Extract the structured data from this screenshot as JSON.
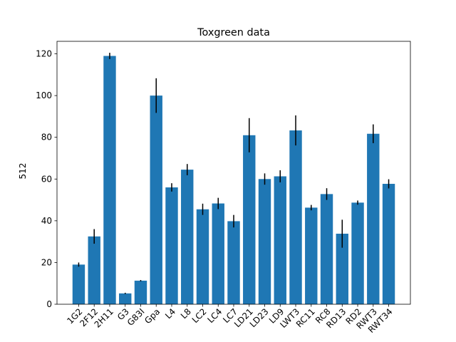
{
  "chart_data": {
    "type": "bar",
    "title": "Toxgreen data",
    "xlabel": "",
    "ylabel": "512",
    "ylim": [
      0,
      126
    ],
    "yticks": [
      0,
      20,
      40,
      60,
      80,
      100,
      120
    ],
    "categories": [
      "1G2",
      "2F12",
      "2H11",
      "G3",
      "G83I",
      "Gpa",
      "L4",
      "L8",
      "LC2",
      "LC4",
      "LC7",
      "LD21",
      "LD23",
      "LD9",
      "LWT3",
      "RC11",
      "RC8",
      "RD13",
      "RD2",
      "RWT3",
      "RWT34"
    ],
    "values": [
      19,
      32.5,
      119,
      5.2,
      11.3,
      100,
      56,
      64.5,
      45.5,
      48.3,
      39.8,
      81,
      60,
      61.3,
      83.3,
      46.3,
      52.8,
      33.8,
      48.7,
      81.7,
      57.7
    ],
    "errors": [
      1,
      3.5,
      1.5,
      0.3,
      0.3,
      8.3,
      2,
      2.7,
      2.7,
      2.7,
      3,
      8.2,
      2.7,
      2.9,
      7.2,
      1.3,
      2.8,
      6.7,
      1,
      4.5,
      2.2
    ],
    "bar_color": "#1f77b4",
    "error_color": "#000000",
    "grid": false,
    "legend": false
  }
}
